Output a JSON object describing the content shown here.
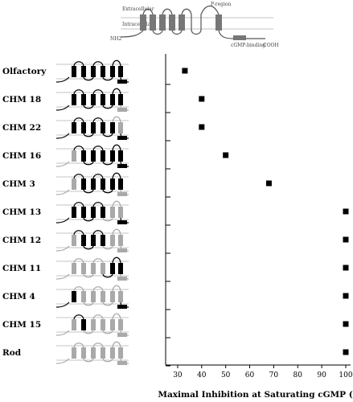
{
  "schematic": {
    "extracellular_label": "Extracellular",
    "intracellular_label": "Intracellular",
    "pore_label": "P-region",
    "nterm_label": "NH2",
    "binding_label": "cGMP-binding",
    "cterm_label": "COOH"
  },
  "colors": {
    "olfactory": "#000000",
    "rod": "#a9a9a9",
    "marker": "#000000"
  },
  "chart_data": {
    "type": "scatter",
    "orientation": "horizontal",
    "xlabel": "Maximal Inhibition at Saturating cGMP (%)",
    "xlim": [
      25,
      100
    ],
    "xticks": [
      30,
      40,
      50,
      60,
      70,
      80,
      90,
      100
    ],
    "categories": [
      "Olfactory",
      "CHM 18",
      "CHM 22",
      "CHM 16",
      "CHM 3",
      "CHM 13",
      "CHM 12",
      "CHM 11",
      "CHM 4",
      "CHM 15",
      "Rod"
    ],
    "values": [
      null,
      null,
      null,
      null,
      null,
      null,
      null,
      null,
      null,
      null,
      null
    ],
    "points": [
      {
        "category": "Olfactory",
        "value": 33
      },
      {
        "category": "CHM 18",
        "value": 40
      },
      {
        "category": "CHM 22",
        "value": 40
      },
      {
        "category": "CHM 16",
        "value": 50
      },
      {
        "category": "CHM 3",
        "value": 68
      },
      {
        "category": "CHM 13",
        "value": 100
      },
      {
        "category": "CHM 12",
        "value": 100
      },
      {
        "category": "CHM 11",
        "value": 100
      },
      {
        "category": "CHM 4",
        "value": 100
      },
      {
        "category": "CHM 15",
        "value": 100
      },
      {
        "category": "Rod",
        "value": 100
      }
    ],
    "chimera_domains": [
      {
        "category": "Olfactory",
        "segments": [
          "o",
          "o",
          "o",
          "o",
          "o",
          "o",
          "o",
          "o"
        ]
      },
      {
        "category": "CHM 18",
        "segments": [
          "o",
          "o",
          "o",
          "o",
          "o",
          "o",
          "o",
          "r"
        ]
      },
      {
        "category": "CHM 22",
        "segments": [
          "o",
          "o",
          "o",
          "o",
          "o",
          "r",
          "o",
          "o"
        ]
      },
      {
        "category": "CHM 16",
        "segments": [
          "r",
          "o",
          "o",
          "o",
          "o",
          "o",
          "o",
          "o"
        ]
      },
      {
        "category": "CHM 3",
        "segments": [
          "r",
          "o",
          "o",
          "o",
          "o",
          "o",
          "o",
          "r"
        ]
      },
      {
        "category": "CHM 13",
        "segments": [
          "o",
          "o",
          "o",
          "o",
          "r",
          "r",
          "r",
          "o"
        ]
      },
      {
        "category": "CHM 12",
        "segments": [
          "r",
          "o",
          "o",
          "o",
          "r",
          "r",
          "r",
          "r"
        ]
      },
      {
        "category": "CHM 11",
        "segments": [
          "r",
          "r",
          "r",
          "r",
          "o",
          "o",
          "o",
          "r"
        ]
      },
      {
        "category": "CHM 4",
        "segments": [
          "o",
          "r",
          "r",
          "r",
          "r",
          "r",
          "r",
          "o"
        ]
      },
      {
        "category": "CHM 15",
        "segments": [
          "r",
          "o",
          "r",
          "r",
          "r",
          "r",
          "r",
          "r"
        ]
      },
      {
        "category": "Rod",
        "segments": [
          "r",
          "r",
          "r",
          "r",
          "r",
          "r",
          "r",
          "r"
        ]
      }
    ]
  }
}
